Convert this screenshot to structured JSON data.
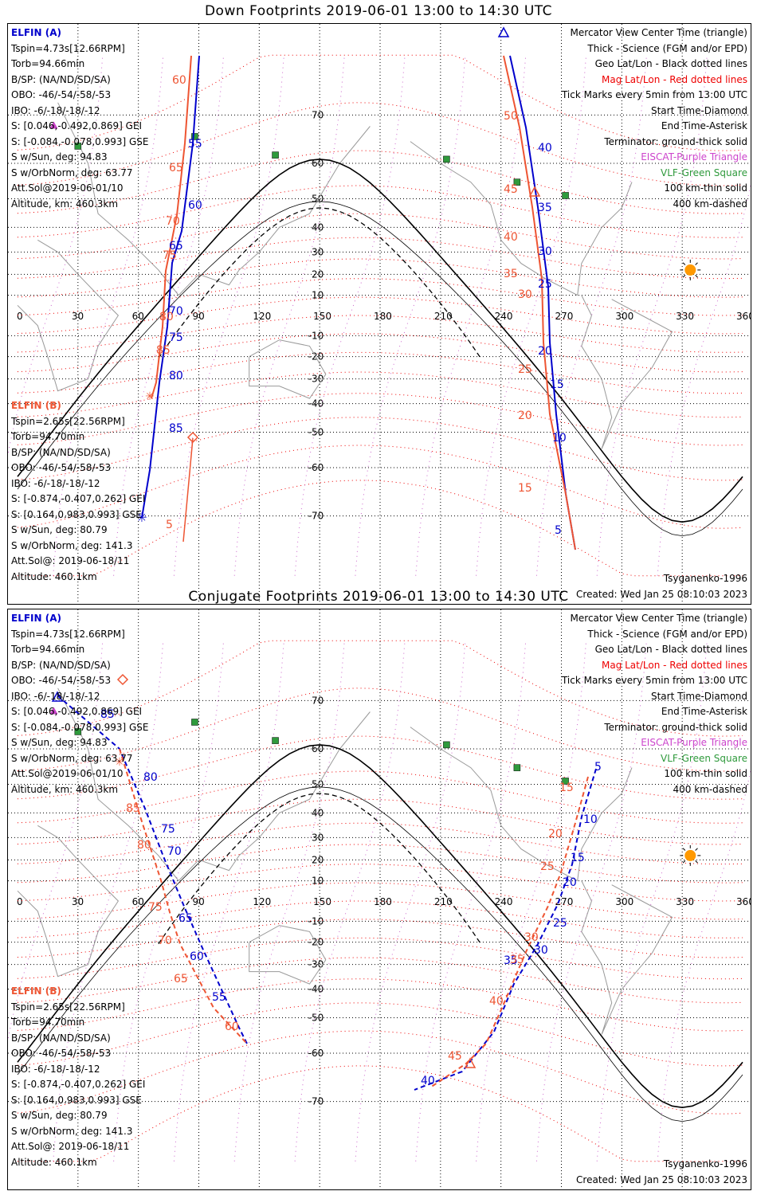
{
  "top_panel": {
    "title": "Down Footprints 2019-06-01 13:00 to 14:30 UTC",
    "elfin_a": [
      "ELFIN (A)",
      "Tspin=4.73s[12.66RPM]",
      "Torb=94.66min",
      "B/SP: (NA/ND/SD/SA)",
      "OBO: -46/-54/-58/-53",
      "IBO: -6/-18/-18/-12",
      "S: [0.046,-0.492,0.869] GEI",
      "S: [-0.084,-0.078,0.993] GSE",
      "S w/Sun, deg: 94.83",
      "S w/OrbNorm, deg: 63.77",
      "Att.Sol@2019-06-01/10",
      "Altitude, km: 460.3km"
    ],
    "elfin_b": [
      "ELFIN (B)",
      "Tspin=2.65s[22.56RPM]",
      "Torb=94.70min",
      "B/SP: (NA/ND/SD/SA)",
      "OBO: -46/-54/-58/-53",
      "IBO: -6/-18/-18/-12",
      "S: [-0.874,-0.407,0.262] GEI",
      "S: [0.164,0.983,0.993] GSE",
      "S w/Sun, deg: 80.79",
      "S w/OrbNorm, deg: 141.3",
      "Att.Sol@: 2019-06-18/11",
      "Altitude: 460.1km"
    ],
    "a_labels": [
      [
        "55",
        0
      ],
      [
        "60",
        1
      ],
      [
        "65",
        2
      ],
      [
        "70",
        3
      ],
      [
        "75",
        4
      ],
      [
        "80",
        5
      ],
      [
        "85",
        6
      ]
    ],
    "b_labels": [
      [
        "60",
        0
      ],
      [
        "65",
        1
      ],
      [
        "70",
        2
      ],
      [
        "75",
        3
      ],
      [
        "80",
        4
      ],
      [
        "85",
        5
      ]
    ],
    "a_east_labels": [
      "40",
      "35",
      "30",
      "25",
      "20",
      "15",
      "10",
      "5"
    ],
    "b_east_labels": [
      "50",
      "45",
      "40",
      "35",
      "30",
      "25",
      "20",
      "15"
    ],
    "b_small_label": "5"
  },
  "bottom_panel": {
    "title": "Conjugate Footprints 2019-06-01 13:00 to 14:30 UTC",
    "elfin_a": [
      "ELFIN (A)",
      "Tspin=4.73s[12.66RPM]",
      "Torb=94.66min",
      "B/SP: (NA/ND/SD/SA)",
      "OBO: -46/-54/-58/-53",
      "IBO: -6/-18/-18/-12",
      "S: [0.046,-0.492,0.869] GEI",
      "S: [-0.084,-0.078,0.993] GSE",
      "S w/Sun, deg: 94.83",
      "S w/OrbNorm, deg: 63.77",
      "Att.Sol@2019-06-01/10",
      "Altitude, km: 460.3km"
    ],
    "elfin_b": [
      "ELFIN (B)",
      "Tspin=2.65s[22.56RPM]",
      "Torb=94.70min",
      "B/SP: (NA/ND/SD/SA)",
      "OBO: -46/-54/-58/-53",
      "IBO: -6/-18/-18/-12",
      "S: [-0.874,-0.407,0.262] GEI",
      "S: [0.164,0.983,0.993] GSE",
      "S w/Sun, deg: 80.79",
      "S w/OrbNorm, deg: 141.3",
      "Att.Sol@: 2019-06-18/11",
      "Altitude: 460.1km"
    ],
    "a_west_labels": [
      "85",
      "80",
      "75",
      "70",
      "65",
      "60",
      "55"
    ],
    "b_west_labels": [
      "85",
      "80",
      "75",
      "70",
      "65",
      "60"
    ],
    "a_east_labels": [
      "5",
      "10",
      "15",
      "20",
      "25",
      "30",
      "35",
      "40"
    ],
    "b_east_labels": [
      "15",
      "20",
      "25",
      "30",
      "35",
      "40",
      "45"
    ]
  },
  "legend": [
    "Mercator View Center Time (triangle)",
    "Thick - Science (FGM and/or EPD)",
    "Geo Lat/Lon - Black dotted lines",
    "Mag Lat/Lon - Red dotted lines",
    "Tick Marks every 5min from 13:00 UTC",
    "Start Time-Diamond",
    "End Time-Asterisk",
    "Terminator: ground-thick solid",
    "EISCAT-Purple Triangle",
    "VLF-Green Square",
    "100 km-thin solid",
    "400 km-dashed"
  ],
  "footer": {
    "model": "Tsyganenko-1996",
    "created": "Created: Wed Jan 25 08:10:03 2023"
  },
  "axes": {
    "lon_ticks": [
      "0",
      "30",
      "60",
      "90",
      "120",
      "150",
      "180",
      "210",
      "240",
      "270",
      "300",
      "330",
      "360"
    ],
    "lat_ticks_top": [
      "70",
      "60",
      "50",
      "40",
      "30",
      "20",
      "10",
      "-10",
      "-20",
      "-30",
      "-40",
      "-50",
      "-60",
      "-70"
    ],
    "lat_ticks_bottom": [
      "70",
      "60",
      "50",
      "40",
      "30",
      "20",
      "10",
      "-10",
      "-20",
      "-30",
      "-40",
      "-50",
      "-60",
      "-70"
    ]
  },
  "colors": {
    "elfin_a": "#0000cc",
    "elfin_b": "#ee5533",
    "mag_grid": "#ee0000",
    "geo_grid": "#000000",
    "eiscat": "#cc44cc",
    "vlf": "#2f9a3c",
    "sun": "#ff9900"
  }
}
